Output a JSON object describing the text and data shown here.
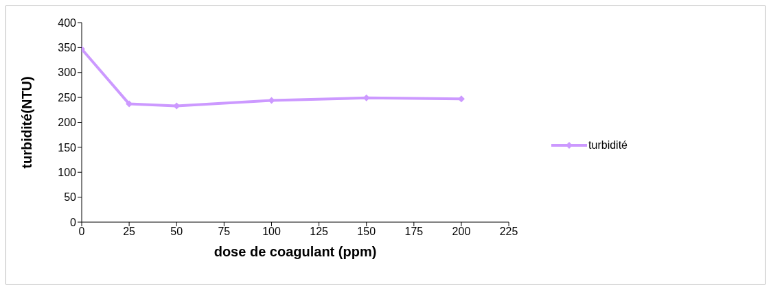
{
  "chart_data": {
    "type": "line",
    "xlabel": "dose de coagulant (ppm)",
    "ylabel": "turbidité(NTU)",
    "x": [
      0,
      25,
      50,
      100,
      150,
      200
    ],
    "series": [
      {
        "name": "turbidité",
        "color": "#cc99ff",
        "values": [
          347,
          237,
          233,
          244,
          249,
          247
        ]
      }
    ],
    "xlim": [
      0,
      225
    ],
    "xticks": [
      0,
      25,
      50,
      75,
      100,
      125,
      150,
      175,
      200,
      225
    ],
    "ylim": [
      0,
      400
    ],
    "yticks": [
      0,
      50,
      100,
      150,
      200,
      250,
      300,
      350,
      400
    ],
    "grid": false,
    "legend": "right",
    "marker": "diamond",
    "line_style": "solid"
  }
}
